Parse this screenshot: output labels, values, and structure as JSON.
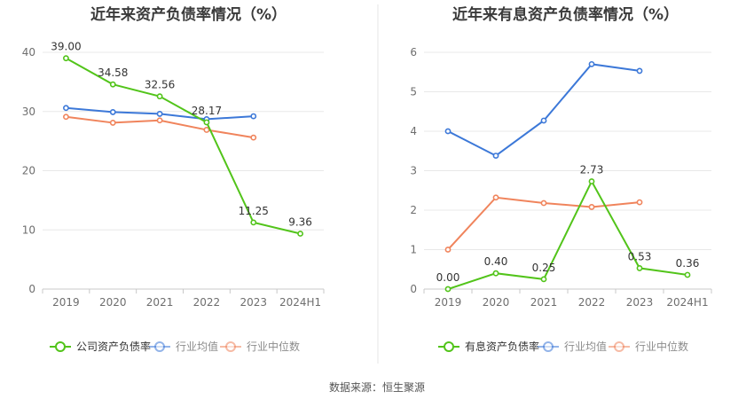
{
  "source_text": "数据来源：恒生聚源",
  "chart_data": [
    {
      "type": "line",
      "title": "近年来资产负债率情况（%）",
      "categories": [
        "2019",
        "2020",
        "2021",
        "2022",
        "2023",
        "2024H1"
      ],
      "ylim": [
        0,
        40
      ],
      "yticks": [
        0,
        10,
        20,
        30,
        40
      ],
      "grid": true,
      "legend_position": "bottom",
      "series": [
        {
          "name": "公司资产负债率",
          "color": "#52c41a",
          "values": [
            39.0,
            34.58,
            32.56,
            28.17,
            11.25,
            9.36
          ],
          "labels": [
            "39.00",
            "34.58",
            "32.56",
            "28.17",
            "11.25",
            "9.36"
          ]
        },
        {
          "name": "行业均值",
          "color": "#3c78d8",
          "values": [
            30.6,
            29.9,
            29.6,
            28.7,
            29.2,
            null
          ],
          "labels": []
        },
        {
          "name": "行业中位数",
          "color": "#f0845c",
          "values": [
            29.1,
            28.1,
            28.5,
            26.9,
            25.6,
            null
          ],
          "labels": []
        }
      ]
    },
    {
      "type": "line",
      "title": "近年来有息资产负债率情况（%）",
      "categories": [
        "2019",
        "2020",
        "2021",
        "2022",
        "2023",
        "2024H1"
      ],
      "ylim": [
        0,
        6
      ],
      "yticks": [
        0,
        1,
        2,
        3,
        4,
        5,
        6
      ],
      "grid": true,
      "legend_position": "bottom",
      "series": [
        {
          "name": "有息资产负债率",
          "color": "#52c41a",
          "values": [
            0.0,
            0.4,
            0.25,
            2.73,
            0.53,
            0.36
          ],
          "labels": [
            "0.00",
            "0.40",
            "0.25",
            "2.73",
            "0.53",
            "0.36"
          ]
        },
        {
          "name": "行业均值",
          "color": "#3c78d8",
          "values": [
            4.0,
            3.38,
            4.27,
            5.7,
            5.53,
            null
          ],
          "labels": []
        },
        {
          "name": "行业中位数",
          "color": "#f0845c",
          "values": [
            1.0,
            2.32,
            2.18,
            2.08,
            2.2,
            null
          ],
          "labels": []
        }
      ]
    }
  ]
}
